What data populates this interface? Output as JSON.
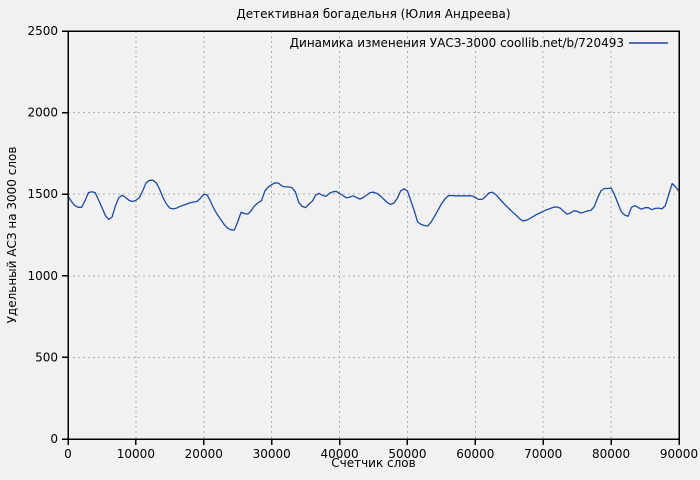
{
  "colors": {
    "background": "#f1f1f1",
    "frame": "#000000",
    "grid": "#b0b0b0",
    "series": "#1c4ba3"
  },
  "chart_data": {
    "type": "line",
    "title": "Детективная богадельня (Юлия Андреева)",
    "xlabel": "Счетчик слов",
    "ylabel": "Удельный АСЗ на 3000 слов",
    "xlim": [
      0,
      90000
    ],
    "ylim": [
      0,
      2500
    ],
    "x_ticks": [
      0,
      10000,
      20000,
      30000,
      40000,
      50000,
      60000,
      70000,
      80000,
      90000
    ],
    "x_tick_labels": [
      "0",
      "10000",
      "20000",
      "30000",
      "40000",
      "50000",
      "60000",
      "70000",
      "80000",
      "90000"
    ],
    "y_ticks": [
      0,
      500,
      1000,
      1500,
      2000,
      2500
    ],
    "y_tick_labels": [
      "0",
      "500",
      "1000",
      "1500",
      "2000",
      "2500"
    ],
    "grid": true,
    "legend": {
      "position": "top-right",
      "entries": [
        {
          "label": "Динамика изменения УАСЗ-3000 coollib.net/b/720493",
          "color": "#1c4ba3"
        }
      ]
    },
    "series": [
      {
        "name": "Динамика изменения УАСЗ-3000 coollib.net/b/720493",
        "color": "#1c4ba3",
        "points": [
          [
            0,
            1490
          ],
          [
            500,
            1455
          ],
          [
            1000,
            1430
          ],
          [
            1500,
            1420
          ],
          [
            2000,
            1420
          ],
          [
            2500,
            1460
          ],
          [
            3000,
            1510
          ],
          [
            3500,
            1515
          ],
          [
            4000,
            1510
          ],
          [
            4500,
            1465
          ],
          [
            5000,
            1420
          ],
          [
            5500,
            1370
          ],
          [
            6000,
            1345
          ],
          [
            6500,
            1360
          ],
          [
            7000,
            1430
          ],
          [
            7500,
            1480
          ],
          [
            8000,
            1493
          ],
          [
            8500,
            1480
          ],
          [
            9000,
            1462
          ],
          [
            9500,
            1455
          ],
          [
            10000,
            1462
          ],
          [
            10500,
            1478
          ],
          [
            11000,
            1520
          ],
          [
            11500,
            1570
          ],
          [
            12000,
            1585
          ],
          [
            12500,
            1585
          ],
          [
            13000,
            1570
          ],
          [
            13500,
            1530
          ],
          [
            14000,
            1480
          ],
          [
            14500,
            1440
          ],
          [
            15000,
            1415
          ],
          [
            15500,
            1410
          ],
          [
            16000,
            1415
          ],
          [
            16500,
            1425
          ],
          [
            17000,
            1432
          ],
          [
            17500,
            1440
          ],
          [
            18000,
            1448
          ],
          [
            18500,
            1452
          ],
          [
            19000,
            1455
          ],
          [
            19500,
            1475
          ],
          [
            20000,
            1500
          ],
          [
            20500,
            1495
          ],
          [
            21000,
            1455
          ],
          [
            21500,
            1410
          ],
          [
            22000,
            1375
          ],
          [
            22500,
            1345
          ],
          [
            23000,
            1315
          ],
          [
            23500,
            1292
          ],
          [
            24000,
            1282
          ],
          [
            24500,
            1280
          ],
          [
            25000,
            1330
          ],
          [
            25500,
            1390
          ],
          [
            26000,
            1382
          ],
          [
            26500,
            1378
          ],
          [
            27000,
            1400
          ],
          [
            27500,
            1430
          ],
          [
            28000,
            1448
          ],
          [
            28500,
            1460
          ],
          [
            29000,
            1520
          ],
          [
            29500,
            1545
          ],
          [
            30000,
            1558
          ],
          [
            30500,
            1570
          ],
          [
            31000,
            1568
          ],
          [
            31500,
            1550
          ],
          [
            32000,
            1545
          ],
          [
            32500,
            1545
          ],
          [
            33000,
            1540
          ],
          [
            33500,
            1515
          ],
          [
            34000,
            1450
          ],
          [
            34500,
            1425
          ],
          [
            35000,
            1418
          ],
          [
            35500,
            1440
          ],
          [
            36000,
            1458
          ],
          [
            36500,
            1495
          ],
          [
            37000,
            1505
          ],
          [
            37500,
            1492
          ],
          [
            38000,
            1488
          ],
          [
            38500,
            1505
          ],
          [
            39000,
            1515
          ],
          [
            39500,
            1518
          ],
          [
            40000,
            1505
          ],
          [
            40500,
            1492
          ],
          [
            41000,
            1478
          ],
          [
            41500,
            1482
          ],
          [
            42000,
            1490
          ],
          [
            42500,
            1480
          ],
          [
            43000,
            1470
          ],
          [
            43500,
            1480
          ],
          [
            44000,
            1495
          ],
          [
            44500,
            1510
          ],
          [
            45000,
            1512
          ],
          [
            45500,
            1505
          ],
          [
            46000,
            1490
          ],
          [
            46500,
            1470
          ],
          [
            47000,
            1450
          ],
          [
            47500,
            1438
          ],
          [
            48000,
            1445
          ],
          [
            48500,
            1475
          ],
          [
            49000,
            1520
          ],
          [
            49500,
            1533
          ],
          [
            50000,
            1520
          ],
          [
            50500,
            1460
          ],
          [
            51000,
            1400
          ],
          [
            51500,
            1330
          ],
          [
            52000,
            1315
          ],
          [
            52500,
            1308
          ],
          [
            53000,
            1305
          ],
          [
            53500,
            1330
          ],
          [
            54000,
            1365
          ],
          [
            54500,
            1402
          ],
          [
            55000,
            1440
          ],
          [
            55500,
            1470
          ],
          [
            56000,
            1490
          ],
          [
            56500,
            1492
          ],
          [
            57000,
            1490
          ],
          [
            57500,
            1490
          ],
          [
            58000,
            1490
          ],
          [
            58500,
            1490
          ],
          [
            59000,
            1490
          ],
          [
            59500,
            1490
          ],
          [
            60000,
            1480
          ],
          [
            60500,
            1468
          ],
          [
            61000,
            1468
          ],
          [
            61500,
            1485
          ],
          [
            62000,
            1508
          ],
          [
            62500,
            1512
          ],
          [
            63000,
            1498
          ],
          [
            63500,
            1475
          ],
          [
            64000,
            1452
          ],
          [
            64500,
            1430
          ],
          [
            65000,
            1410
          ],
          [
            65500,
            1390
          ],
          [
            66000,
            1372
          ],
          [
            66500,
            1350
          ],
          [
            67000,
            1337
          ],
          [
            67500,
            1340
          ],
          [
            68000,
            1350
          ],
          [
            68500,
            1362
          ],
          [
            69000,
            1375
          ],
          [
            69500,
            1385
          ],
          [
            70000,
            1395
          ],
          [
            70500,
            1405
          ],
          [
            71000,
            1412
          ],
          [
            71500,
            1420
          ],
          [
            72000,
            1422
          ],
          [
            72500,
            1415
          ],
          [
            73000,
            1395
          ],
          [
            73500,
            1378
          ],
          [
            74000,
            1385
          ],
          [
            74500,
            1398
          ],
          [
            75000,
            1395
          ],
          [
            75500,
            1385
          ],
          [
            76000,
            1390
          ],
          [
            76500,
            1398
          ],
          [
            77000,
            1400
          ],
          [
            77500,
            1422
          ],
          [
            78000,
            1475
          ],
          [
            78500,
            1520
          ],
          [
            79000,
            1535
          ],
          [
            79500,
            1535
          ],
          [
            80000,
            1538
          ],
          [
            80500,
            1497
          ],
          [
            81000,
            1445
          ],
          [
            81500,
            1393
          ],
          [
            82000,
            1372
          ],
          [
            82500,
            1365
          ],
          [
            83000,
            1420
          ],
          [
            83500,
            1430
          ],
          [
            84000,
            1418
          ],
          [
            84500,
            1408
          ],
          [
            85000,
            1418
          ],
          [
            85500,
            1417
          ],
          [
            86000,
            1405
          ],
          [
            86500,
            1413
          ],
          [
            87000,
            1415
          ],
          [
            87500,
            1410
          ],
          [
            88000,
            1430
          ],
          [
            88500,
            1500
          ],
          [
            89000,
            1565
          ],
          [
            89500,
            1545
          ],
          [
            90000,
            1518
          ]
        ]
      }
    ]
  }
}
